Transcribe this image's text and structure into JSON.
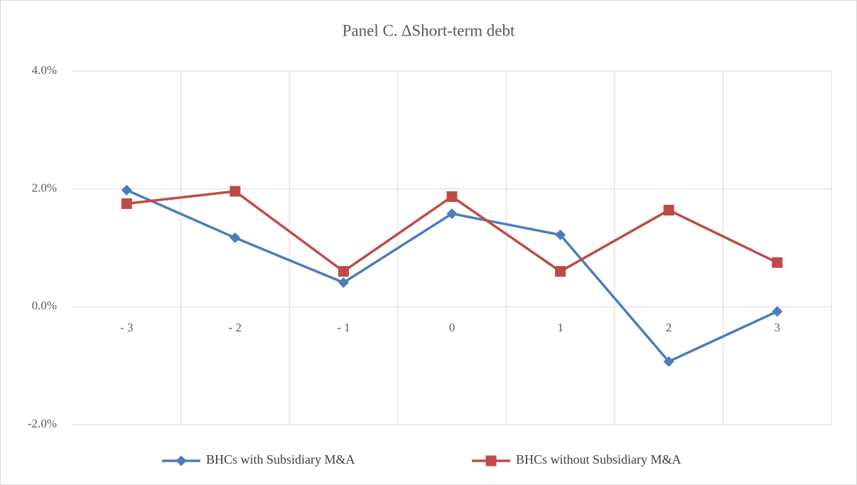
{
  "chart_data": {
    "type": "line",
    "title": "Panel C. ∆Short-term debt",
    "categories": [
      "- 3",
      "- 2",
      "- 1",
      "0",
      "1",
      "2",
      "3"
    ],
    "series": [
      {
        "name": "BHCs with Subsidiary M&A",
        "color": "#4a7ebb",
        "marker": "diamond",
        "values": [
          1.98,
          1.17,
          0.41,
          1.58,
          1.22,
          -0.93,
          -0.08
        ]
      },
      {
        "name": "BHCs without Subsidiary M&A",
        "color": "#be4b48",
        "marker": "square",
        "values": [
          1.75,
          1.96,
          0.6,
          1.87,
          0.6,
          1.64,
          0.75
        ]
      }
    ],
    "ylim": [
      -2,
      4
    ],
    "yticks": [
      {
        "value": -2,
        "label": "-2.0%"
      },
      {
        "value": 0,
        "label": "0.0%"
      },
      {
        "value": 2,
        "label": "2.0%"
      },
      {
        "value": 4,
        "label": "4.0%"
      }
    ],
    "grid": true,
    "legend": "bottom"
  }
}
